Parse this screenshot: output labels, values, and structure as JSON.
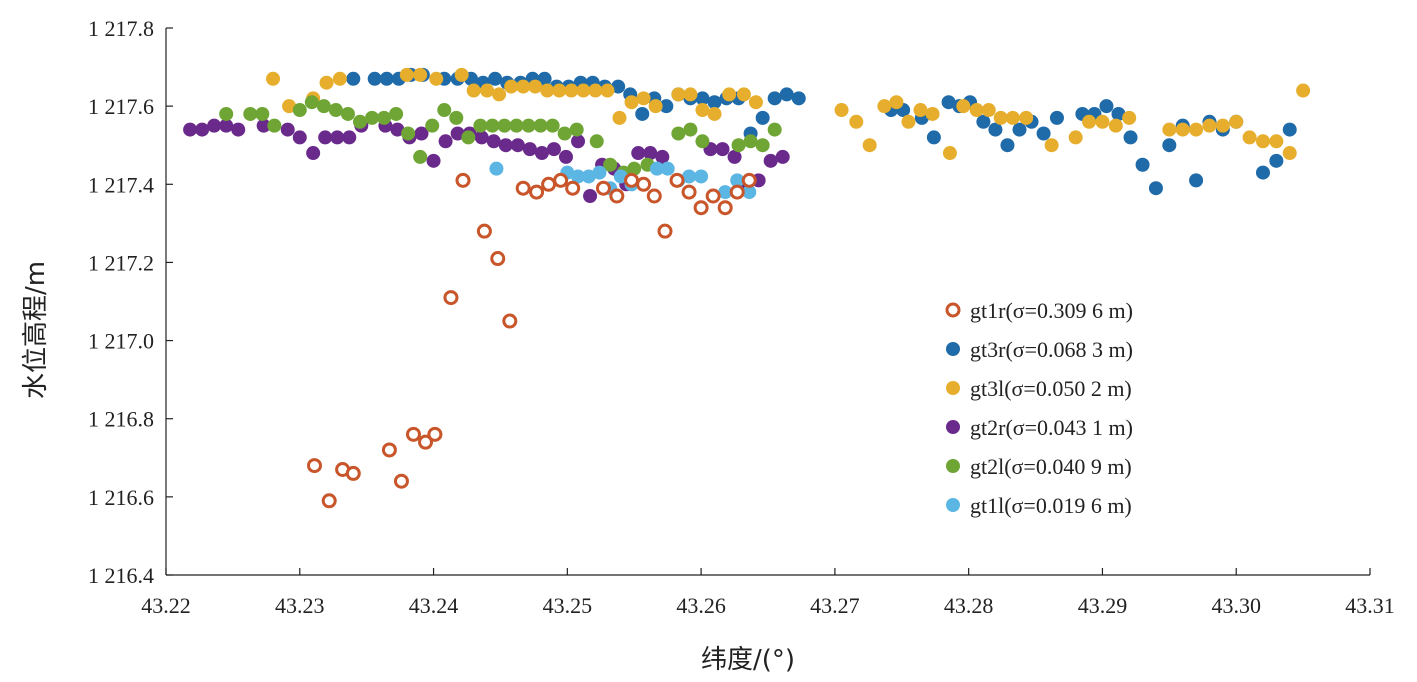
{
  "chart_data": {
    "type": "scatter",
    "title": "",
    "xlabel": "纬度/(°)",
    "ylabel": "水位高程/m",
    "xlim": [
      43.22,
      43.31
    ],
    "ylim": [
      1216.4,
      1217.8
    ],
    "x_ticks": [
      43.22,
      43.23,
      43.24,
      43.25,
      43.26,
      43.27,
      43.28,
      43.29,
      43.3,
      43.31
    ],
    "x_tick_labels": [
      "43.22",
      "43.23",
      "43.24",
      "43.25",
      "43.26",
      "43.27",
      "43.28",
      "43.29",
      "43.30",
      "43.31"
    ],
    "y_ticks": [
      1216.4,
      1216.6,
      1216.8,
      1217.0,
      1217.2,
      1217.4,
      1217.6,
      1217.8
    ],
    "y_tick_labels": [
      "1 216.4",
      "1 216.6",
      "1 216.8",
      "1 217.0",
      "1 217.2",
      "1 217.4",
      "1 217.6",
      "1 217.8"
    ],
    "grid": false,
    "legend_position": "center-right",
    "series": [
      {
        "name": "gt1r",
        "legend_label": "gt1r(σ=0.309 6 m)",
        "color": "#c8562a",
        "marker": "hollow-circle",
        "points": [
          [
            43.2311,
            1216.68
          ],
          [
            43.2322,
            1216.59
          ],
          [
            43.2332,
            1216.67
          ],
          [
            43.234,
            1216.66
          ],
          [
            43.2367,
            1216.72
          ],
          [
            43.2376,
            1216.64
          ],
          [
            43.2385,
            1216.76
          ],
          [
            43.2394,
            1216.74
          ],
          [
            43.2401,
            1216.76
          ],
          [
            43.2413,
            1217.11
          ],
          [
            43.2422,
            1217.41
          ],
          [
            43.2438,
            1217.28
          ],
          [
            43.2448,
            1217.21
          ],
          [
            43.2457,
            1217.05
          ],
          [
            43.2467,
            1217.39
          ],
          [
            43.2477,
            1217.38
          ],
          [
            43.2486,
            1217.4
          ],
          [
            43.2495,
            1217.41
          ],
          [
            43.2504,
            1217.39
          ],
          [
            43.2527,
            1217.39
          ],
          [
            43.2537,
            1217.37
          ],
          [
            43.2548,
            1217.41
          ],
          [
            43.2557,
            1217.4
          ],
          [
            43.2565,
            1217.37
          ],
          [
            43.2573,
            1217.28
          ],
          [
            43.2582,
            1217.41
          ],
          [
            43.2591,
            1217.38
          ],
          [
            43.26,
            1217.34
          ],
          [
            43.2609,
            1217.37
          ],
          [
            43.2618,
            1217.34
          ],
          [
            43.2627,
            1217.38
          ],
          [
            43.2636,
            1217.41
          ]
        ]
      },
      {
        "name": "gt3r",
        "legend_label": "gt3r(σ=0.068 3 m)",
        "color": "#1f6aa8",
        "marker": "filled-circle",
        "points": [
          [
            43.234,
            1217.67
          ],
          [
            43.2356,
            1217.67
          ],
          [
            43.2365,
            1217.67
          ],
          [
            43.2374,
            1217.67
          ],
          [
            43.2383,
            1217.68
          ],
          [
            43.2392,
            1217.68
          ],
          [
            43.2408,
            1217.67
          ],
          [
            43.2418,
            1217.67
          ],
          [
            43.2428,
            1217.67
          ],
          [
            43.2437,
            1217.66
          ],
          [
            43.2446,
            1217.67
          ],
          [
            43.2455,
            1217.66
          ],
          [
            43.2465,
            1217.66
          ],
          [
            43.2474,
            1217.67
          ],
          [
            43.2483,
            1217.67
          ],
          [
            43.2492,
            1217.65
          ],
          [
            43.2501,
            1217.65
          ],
          [
            43.251,
            1217.66
          ],
          [
            43.2519,
            1217.66
          ],
          [
            43.2528,
            1217.65
          ],
          [
            43.2538,
            1217.65
          ],
          [
            43.2547,
            1217.63
          ],
          [
            43.2556,
            1217.58
          ],
          [
            43.2565,
            1217.62
          ],
          [
            43.2574,
            1217.6
          ],
          [
            43.2583,
            1217.63
          ],
          [
            43.2592,
            1217.62
          ],
          [
            43.2601,
            1217.62
          ],
          [
            43.261,
            1217.61
          ],
          [
            43.2619,
            1217.62
          ],
          [
            43.2628,
            1217.62
          ],
          [
            43.2637,
            1217.53
          ],
          [
            43.2646,
            1217.57
          ],
          [
            43.2655,
            1217.62
          ],
          [
            43.2664,
            1217.63
          ],
          [
            43.2673,
            1217.62
          ],
          [
            43.2742,
            1217.59
          ],
          [
            43.2751,
            1217.59
          ],
          [
            43.2765,
            1217.57
          ],
          [
            43.2774,
            1217.52
          ],
          [
            43.2785,
            1217.61
          ],
          [
            43.2793,
            1217.6
          ],
          [
            43.2801,
            1217.61
          ],
          [
            43.2811,
            1217.56
          ],
          [
            43.282,
            1217.54
          ],
          [
            43.2829,
            1217.5
          ],
          [
            43.2838,
            1217.54
          ],
          [
            43.2847,
            1217.56
          ],
          [
            43.2856,
            1217.53
          ],
          [
            43.2866,
            1217.57
          ],
          [
            43.2885,
            1217.58
          ],
          [
            43.2894,
            1217.58
          ],
          [
            43.2903,
            1217.6
          ],
          [
            43.2912,
            1217.58
          ],
          [
            43.2921,
            1217.52
          ],
          [
            43.293,
            1217.45
          ],
          [
            43.294,
            1217.39
          ],
          [
            43.295,
            1217.5
          ],
          [
            43.296,
            1217.55
          ],
          [
            43.297,
            1217.41
          ],
          [
            43.298,
            1217.56
          ],
          [
            43.299,
            1217.54
          ],
          [
            43.3,
            1217.56
          ],
          [
            43.302,
            1217.43
          ],
          [
            43.303,
            1217.46
          ],
          [
            43.304,
            1217.54
          ]
        ]
      },
      {
        "name": "gt3l",
        "legend_label": "gt3l(σ=0.050 2 m)",
        "color": "#e6ae2c",
        "marker": "filled-circle",
        "points": [
          [
            43.228,
            1217.67
          ],
          [
            43.2292,
            1217.6
          ],
          [
            43.231,
            1217.62
          ],
          [
            43.232,
            1217.66
          ],
          [
            43.233,
            1217.67
          ],
          [
            43.238,
            1217.68
          ],
          [
            43.239,
            1217.68
          ],
          [
            43.2402,
            1217.67
          ],
          [
            43.2421,
            1217.68
          ],
          [
            43.243,
            1217.64
          ],
          [
            43.244,
            1217.64
          ],
          [
            43.2449,
            1217.63
          ],
          [
            43.2458,
            1217.65
          ],
          [
            43.2467,
            1217.65
          ],
          [
            43.2476,
            1217.65
          ],
          [
            43.2485,
            1217.64
          ],
          [
            43.2494,
            1217.64
          ],
          [
            43.2503,
            1217.64
          ],
          [
            43.2512,
            1217.64
          ],
          [
            43.2521,
            1217.64
          ],
          [
            43.253,
            1217.64
          ],
          [
            43.2539,
            1217.57
          ],
          [
            43.2548,
            1217.61
          ],
          [
            43.2557,
            1217.62
          ],
          [
            43.2566,
            1217.6
          ],
          [
            43.2583,
            1217.63
          ],
          [
            43.2592,
            1217.63
          ],
          [
            43.2601,
            1217.59
          ],
          [
            43.261,
            1217.58
          ],
          [
            43.2621,
            1217.63
          ],
          [
            43.2632,
            1217.63
          ],
          [
            43.2641,
            1217.61
          ],
          [
            43.2705,
            1217.59
          ],
          [
            43.2716,
            1217.56
          ],
          [
            43.2726,
            1217.5
          ],
          [
            43.2737,
            1217.6
          ],
          [
            43.2746,
            1217.61
          ],
          [
            43.2755,
            1217.56
          ],
          [
            43.2764,
            1217.59
          ],
          [
            43.2773,
            1217.58
          ],
          [
            43.2786,
            1217.48
          ],
          [
            43.2796,
            1217.6
          ],
          [
            43.2806,
            1217.59
          ],
          [
            43.2815,
            1217.59
          ],
          [
            43.2824,
            1217.57
          ],
          [
            43.2833,
            1217.57
          ],
          [
            43.2843,
            1217.57
          ],
          [
            43.2862,
            1217.5
          ],
          [
            43.288,
            1217.52
          ],
          [
            43.289,
            1217.56
          ],
          [
            43.29,
            1217.56
          ],
          [
            43.291,
            1217.55
          ],
          [
            43.292,
            1217.57
          ],
          [
            43.295,
            1217.54
          ],
          [
            43.296,
            1217.54
          ],
          [
            43.297,
            1217.54
          ],
          [
            43.298,
            1217.55
          ],
          [
            43.299,
            1217.55
          ],
          [
            43.3,
            1217.56
          ],
          [
            43.301,
            1217.52
          ],
          [
            43.302,
            1217.51
          ],
          [
            43.303,
            1217.51
          ],
          [
            43.304,
            1217.48
          ],
          [
            43.305,
            1217.64
          ]
        ]
      },
      {
        "name": "gt2r",
        "legend_label": "gt2r(σ=0.043 1 m)",
        "color": "#6a2a8c",
        "marker": "filled-circle",
        "points": [
          [
            43.2218,
            1217.54
          ],
          [
            43.2227,
            1217.54
          ],
          [
            43.2236,
            1217.55
          ],
          [
            43.2245,
            1217.55
          ],
          [
            43.2254,
            1217.54
          ],
          [
            43.2273,
            1217.55
          ],
          [
            43.2291,
            1217.54
          ],
          [
            43.23,
            1217.52
          ],
          [
            43.231,
            1217.48
          ],
          [
            43.2319,
            1217.52
          ],
          [
            43.2328,
            1217.52
          ],
          [
            43.2337,
            1217.52
          ],
          [
            43.2346,
            1217.55
          ],
          [
            43.2364,
            1217.55
          ],
          [
            43.2373,
            1217.54
          ],
          [
            43.2382,
            1217.52
          ],
          [
            43.2391,
            1217.53
          ],
          [
            43.24,
            1217.46
          ],
          [
            43.2409,
            1217.51
          ],
          [
            43.2418,
            1217.53
          ],
          [
            43.2427,
            1217.53
          ],
          [
            43.2436,
            1217.52
          ],
          [
            43.2445,
            1217.51
          ],
          [
            43.2454,
            1217.5
          ],
          [
            43.2463,
            1217.5
          ],
          [
            43.2472,
            1217.49
          ],
          [
            43.2481,
            1217.48
          ],
          [
            43.249,
            1217.49
          ],
          [
            43.2499,
            1217.47
          ],
          [
            43.2508,
            1217.51
          ],
          [
            43.2517,
            1217.37
          ],
          [
            43.2526,
            1217.45
          ],
          [
            43.2535,
            1217.44
          ],
          [
            43.2544,
            1217.4
          ],
          [
            43.2553,
            1217.48
          ],
          [
            43.2562,
            1217.48
          ],
          [
            43.2571,
            1217.47
          ],
          [
            43.2607,
            1217.49
          ],
          [
            43.2616,
            1217.49
          ],
          [
            43.2625,
            1217.47
          ],
          [
            43.2634,
            1217.4
          ],
          [
            43.2643,
            1217.41
          ],
          [
            43.2652,
            1217.46
          ],
          [
            43.2661,
            1217.47
          ]
        ]
      },
      {
        "name": "gt2l",
        "legend_label": "gt2l(σ=0.040 9 m)",
        "color": "#6fa534",
        "marker": "filled-circle",
        "points": [
          [
            43.2245,
            1217.58
          ],
          [
            43.2263,
            1217.58
          ],
          [
            43.2272,
            1217.58
          ],
          [
            43.2281,
            1217.55
          ],
          [
            43.23,
            1217.59
          ],
          [
            43.2309,
            1217.61
          ],
          [
            43.2318,
            1217.6
          ],
          [
            43.2327,
            1217.59
          ],
          [
            43.2336,
            1217.58
          ],
          [
            43.2345,
            1217.56
          ],
          [
            43.2354,
            1217.57
          ],
          [
            43.2363,
            1217.57
          ],
          [
            43.2372,
            1217.58
          ],
          [
            43.2381,
            1217.53
          ],
          [
            43.239,
            1217.47
          ],
          [
            43.2399,
            1217.55
          ],
          [
            43.2408,
            1217.59
          ],
          [
            43.2417,
            1217.57
          ],
          [
            43.2426,
            1217.52
          ],
          [
            43.2435,
            1217.55
          ],
          [
            43.2444,
            1217.55
          ],
          [
            43.2453,
            1217.55
          ],
          [
            43.2462,
            1217.55
          ],
          [
            43.2471,
            1217.55
          ],
          [
            43.248,
            1217.55
          ],
          [
            43.2489,
            1217.55
          ],
          [
            43.2498,
            1217.53
          ],
          [
            43.2507,
            1217.54
          ],
          [
            43.2522,
            1217.51
          ],
          [
            43.2532,
            1217.45
          ],
          [
            43.2542,
            1217.43
          ],
          [
            43.255,
            1217.44
          ],
          [
            43.256,
            1217.45
          ],
          [
            43.2583,
            1217.53
          ],
          [
            43.2592,
            1217.54
          ],
          [
            43.2601,
            1217.51
          ],
          [
            43.2628,
            1217.5
          ],
          [
            43.2637,
            1217.51
          ],
          [
            43.2646,
            1217.5
          ],
          [
            43.2655,
            1217.54
          ]
        ]
      },
      {
        "name": "gt1l",
        "legend_label": "gt1l(σ=0.019 6 m)",
        "color": "#5bb6e3",
        "marker": "filled-circle",
        "points": [
          [
            43.2447,
            1217.44
          ],
          [
            43.25,
            1217.43
          ],
          [
            43.2508,
            1217.42
          ],
          [
            43.2516,
            1217.42
          ],
          [
            43.2524,
            1217.43
          ],
          [
            43.2532,
            1217.39
          ],
          [
            43.254,
            1217.42
          ],
          [
            43.2548,
            1217.4
          ],
          [
            43.2567,
            1217.44
          ],
          [
            43.2575,
            1217.44
          ],
          [
            43.2583,
            1217.41
          ],
          [
            43.2591,
            1217.42
          ],
          [
            43.26,
            1217.42
          ],
          [
            43.2618,
            1217.38
          ],
          [
            43.2627,
            1217.41
          ],
          [
            43.2636,
            1217.38
          ]
        ]
      }
    ]
  }
}
